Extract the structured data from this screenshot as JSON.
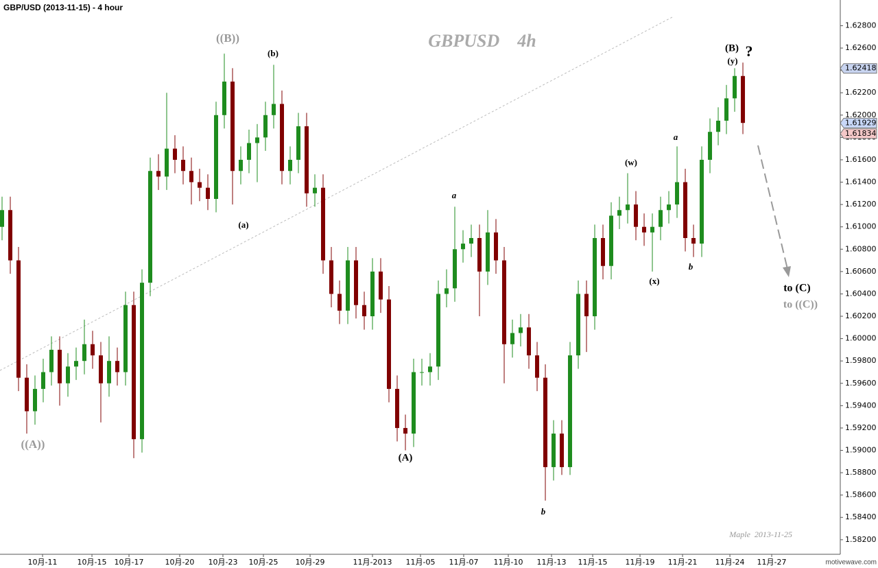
{
  "chart_data": {
    "type": "candlestick",
    "title": "GBP/USD (2013-11-15) - 4 hour",
    "watermark": "GBPUSD    4h",
    "author_note": "Maple  2013-11-25",
    "brand": "motivewave.com",
    "up_color": "#1e8c1e",
    "down_color": "#800000",
    "xlim": [
      -0.25,
      101.83
    ],
    "ylim": [
      1.5807,
      1.6303
    ],
    "xticks": [
      {
        "value": 4.92,
        "label": "10月-11"
      },
      {
        "value": 10.92,
        "label": "10月-15"
      },
      {
        "value": 15.42,
        "label": "10月-17"
      },
      {
        "value": 21.58,
        "label": "10月-20"
      },
      {
        "value": 26.83,
        "label": "10月-23"
      },
      {
        "value": 31.75,
        "label": "10月-25"
      },
      {
        "value": 37.42,
        "label": "10月-29"
      },
      {
        "value": 45,
        "label": "11月-2013"
      },
      {
        "value": 50.83,
        "label": "11月-05"
      },
      {
        "value": 56.08,
        "label": "11月-07"
      },
      {
        "value": 61.5,
        "label": "11月-10"
      },
      {
        "value": 66.75,
        "label": "11月-13"
      },
      {
        "value": 71.75,
        "label": "11月-15"
      },
      {
        "value": 77.5,
        "label": "11月-19"
      },
      {
        "value": 82.67,
        "label": "11月-21"
      },
      {
        "value": 88.42,
        "label": "11月-24"
      },
      {
        "value": 93.5,
        "label": "11月-27"
      }
    ],
    "yticks": [
      {
        "value": 1.582,
        "label": "1.58200"
      },
      {
        "value": 1.584,
        "label": "1.58400"
      },
      {
        "value": 1.586,
        "label": "1.58600"
      },
      {
        "value": 1.588,
        "label": "1.58800"
      },
      {
        "value": 1.59,
        "label": "1.59000"
      },
      {
        "value": 1.592,
        "label": "1.59200"
      },
      {
        "value": 1.594,
        "label": "1.59400"
      },
      {
        "value": 1.596,
        "label": "1.59600"
      },
      {
        "value": 1.598,
        "label": "1.59800"
      },
      {
        "value": 1.6,
        "label": "1.60000"
      },
      {
        "value": 1.602,
        "label": "1.60200"
      },
      {
        "value": 1.604,
        "label": "1.60400"
      },
      {
        "value": 1.606,
        "label": "1.60600"
      },
      {
        "value": 1.608,
        "label": "1.60800"
      },
      {
        "value": 1.61,
        "label": "1.61000"
      },
      {
        "value": 1.612,
        "label": "1.61200"
      },
      {
        "value": 1.614,
        "label": "1.61400"
      },
      {
        "value": 1.616,
        "label": "1.61600"
      },
      {
        "value": 1.618,
        "label": "1.61800"
      },
      {
        "value": 1.62,
        "label": "1.62000"
      },
      {
        "value": 1.622,
        "label": "1.62200"
      },
      {
        "value": 1.624,
        "label": "1.62400"
      },
      {
        "value": 1.626,
        "label": "1.62600"
      },
      {
        "value": 1.628,
        "label": "1.62800"
      }
    ],
    "price_tags": [
      {
        "value": 1.62418,
        "color": "#c8d4f0"
      },
      {
        "value": 1.61929,
        "color": "#c8d8f8"
      },
      {
        "value": 1.61834,
        "color": "#f4c8c8"
      }
    ],
    "open": [
      1.61,
      1.6115,
      1.607,
      1.5965,
      1.5935,
      1.5955,
      1.597,
      1.599,
      1.596,
      1.5975,
      1.598,
      1.5995,
      1.5985,
      1.596,
      1.598,
      1.597,
      1.603,
      1.591,
      1.605,
      1.615,
      1.6145,
      1.617,
      1.616,
      1.615,
      1.614,
      1.6135,
      1.6125,
      1.62,
      1.623,
      1.615,
      1.616,
      1.6175,
      1.618,
      1.62,
      1.621,
      1.615,
      1.616,
      1.619,
      1.613,
      1.6135,
      1.607,
      1.604,
      1.6025,
      1.607,
      1.603,
      1.602,
      1.606,
      1.6035,
      1.5955,
      1.592,
      1.5915,
      1.597,
      1.597,
      1.5975,
      1.604,
      1.6045,
      1.608,
      1.6085,
      1.609,
      1.606,
      1.6095,
      1.607,
      1.5995,
      1.6005,
      1.601,
      1.5985,
      1.5965,
      1.5885,
      1.5915,
      1.5885,
      1.5985,
      1.604,
      1.602,
      1.609,
      1.6065,
      1.611,
      1.6115,
      1.612,
      1.61,
      1.6095,
      1.61,
      1.6115,
      1.612,
      1.614,
      1.609,
      1.6085,
      1.616,
      1.6185,
      1.6195,
      1.6215,
      1.6235
    ],
    "high": [
      1.6127,
      1.6127,
      1.6082,
      1.5977,
      1.5967,
      1.5982,
      1.6002,
      1.6002,
      1.5987,
      1.5992,
      1.6017,
      1.6007,
      1.5997,
      1.6002,
      1.5992,
      1.6042,
      1.6042,
      1.6062,
      1.6162,
      1.6165,
      1.622,
      1.6182,
      1.6172,
      1.6162,
      1.6152,
      1.6147,
      1.6212,
      1.6255,
      1.6242,
      1.6172,
      1.6187,
      1.6192,
      1.6212,
      1.6245,
      1.6222,
      1.6172,
      1.6202,
      1.6202,
      1.6147,
      1.6147,
      1.6082,
      1.6052,
      1.6082,
      1.6082,
      1.6042,
      1.6072,
      1.6072,
      1.6047,
      1.5967,
      1.5932,
      1.5982,
      1.5982,
      1.5987,
      1.6052,
      1.6062,
      1.6118,
      1.6097,
      1.6102,
      1.6102,
      1.6115,
      1.6107,
      1.6082,
      1.6017,
      1.6022,
      1.6022,
      1.5997,
      1.5977,
      1.5927,
      1.5927,
      1.5997,
      1.6052,
      1.6052,
      1.6102,
      1.6102,
      1.6122,
      1.6127,
      1.6148,
      1.6132,
      1.6112,
      1.6112,
      1.6127,
      1.6132,
      1.6172,
      1.6152,
      1.6102,
      1.6172,
      1.6197,
      1.6207,
      1.6227,
      1.6242,
      1.6247
    ],
    "low": [
      1.6088,
      1.6058,
      1.5953,
      1.5915,
      1.5923,
      1.5943,
      1.5958,
      1.594,
      1.5948,
      1.5963,
      1.5968,
      1.5973,
      1.5925,
      1.5948,
      1.5958,
      1.5958,
      1.5893,
      1.5898,
      1.6038,
      1.6133,
      1.6133,
      1.6148,
      1.6138,
      1.612,
      1.6123,
      1.6115,
      1.6113,
      1.6188,
      1.612,
      1.6138,
      1.6148,
      1.614,
      1.6168,
      1.6188,
      1.6138,
      1.6138,
      1.6148,
      1.6118,
      1.6118,
      1.6058,
      1.6028,
      1.6013,
      1.6013,
      1.6018,
      1.6008,
      1.6008,
      1.6023,
      1.5943,
      1.5908,
      1.59,
      1.5903,
      1.5958,
      1.5958,
      1.5963,
      1.6028,
      1.6033,
      1.6068,
      1.6073,
      1.602,
      1.6048,
      1.6058,
      1.596,
      1.5983,
      1.5993,
      1.5973,
      1.5953,
      1.5855,
      1.5873,
      1.5878,
      1.5878,
      1.5973,
      1.5988,
      1.6008,
      1.6053,
      1.6053,
      1.6098,
      1.6103,
      1.6088,
      1.6083,
      1.606,
      1.6088,
      1.6103,
      1.6108,
      1.6078,
      1.6073,
      1.6073,
      1.6148,
      1.6173,
      1.6183,
      1.6203,
      1.6183
    ],
    "close": [
      1.6115,
      1.607,
      1.5965,
      1.5935,
      1.5955,
      1.597,
      1.599,
      1.596,
      1.5975,
      1.598,
      1.5995,
      1.5985,
      1.596,
      1.598,
      1.597,
      1.603,
      1.591,
      1.605,
      1.615,
      1.6145,
      1.617,
      1.616,
      1.615,
      1.614,
      1.6135,
      1.6125,
      1.62,
      1.623,
      1.615,
      1.616,
      1.6175,
      1.618,
      1.62,
      1.621,
      1.615,
      1.616,
      1.619,
      1.613,
      1.6135,
      1.607,
      1.604,
      1.6025,
      1.607,
      1.603,
      1.602,
      1.606,
      1.6035,
      1.5955,
      1.592,
      1.5915,
      1.597,
      1.597,
      1.5975,
      1.604,
      1.6045,
      1.608,
      1.6085,
      1.609,
      1.606,
      1.6095,
      1.607,
      1.5995,
      1.6005,
      1.601,
      1.5985,
      1.5965,
      1.5885,
      1.5915,
      1.5885,
      1.5985,
      1.604,
      1.602,
      1.609,
      1.6065,
      1.611,
      1.6115,
      1.612,
      1.61,
      1.6095,
      1.61,
      1.6115,
      1.612,
      1.614,
      1.609,
      1.6085,
      1.616,
      1.6185,
      1.6195,
      1.6215,
      1.6235,
      1.6193
    ],
    "annotations": [
      "((B))",
      "(b)",
      "(a)",
      "((A))",
      "a",
      "(A)",
      "b",
      "(w)",
      "(x)",
      "a",
      "b",
      "(B)",
      "(y)",
      "?",
      "to (C)",
      "to ((C))"
    ]
  }
}
